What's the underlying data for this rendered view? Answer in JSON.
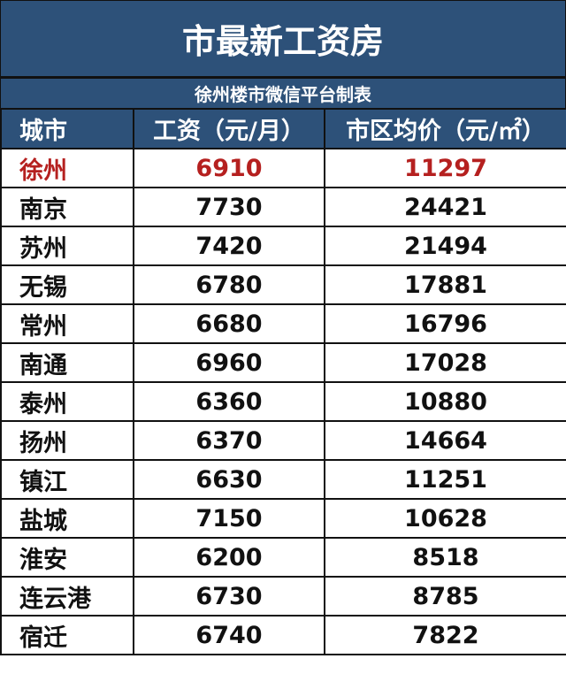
{
  "title": "市最新工资房",
  "subtitle": "徐州楼市微信平台制表",
  "headers": [
    "城市",
    "工资（元/月）",
    "市区均价（元/㎡）"
  ],
  "highlight_color": "#b5201f",
  "rows": [
    [
      "徐州",
      "6910",
      "11297"
    ],
    [
      "南京",
      "7730",
      "24421"
    ],
    [
      "苏州",
      "7420",
      "21494"
    ],
    [
      "无锡",
      "6780",
      "17881"
    ],
    [
      "常州",
      "6680",
      "16796"
    ],
    [
      "南通",
      "6960",
      "17028"
    ],
    [
      "泰州",
      "6360",
      "10880"
    ],
    [
      "扬州",
      "6370",
      "14664"
    ],
    [
      "镇江",
      "6630",
      "11251"
    ],
    [
      "盐城",
      "7150",
      "10628"
    ],
    [
      "淮安",
      "6200",
      "8518"
    ],
    [
      "连云港",
      "6730",
      "8785"
    ],
    [
      "宿迁",
      "6740",
      "7822"
    ]
  ]
}
